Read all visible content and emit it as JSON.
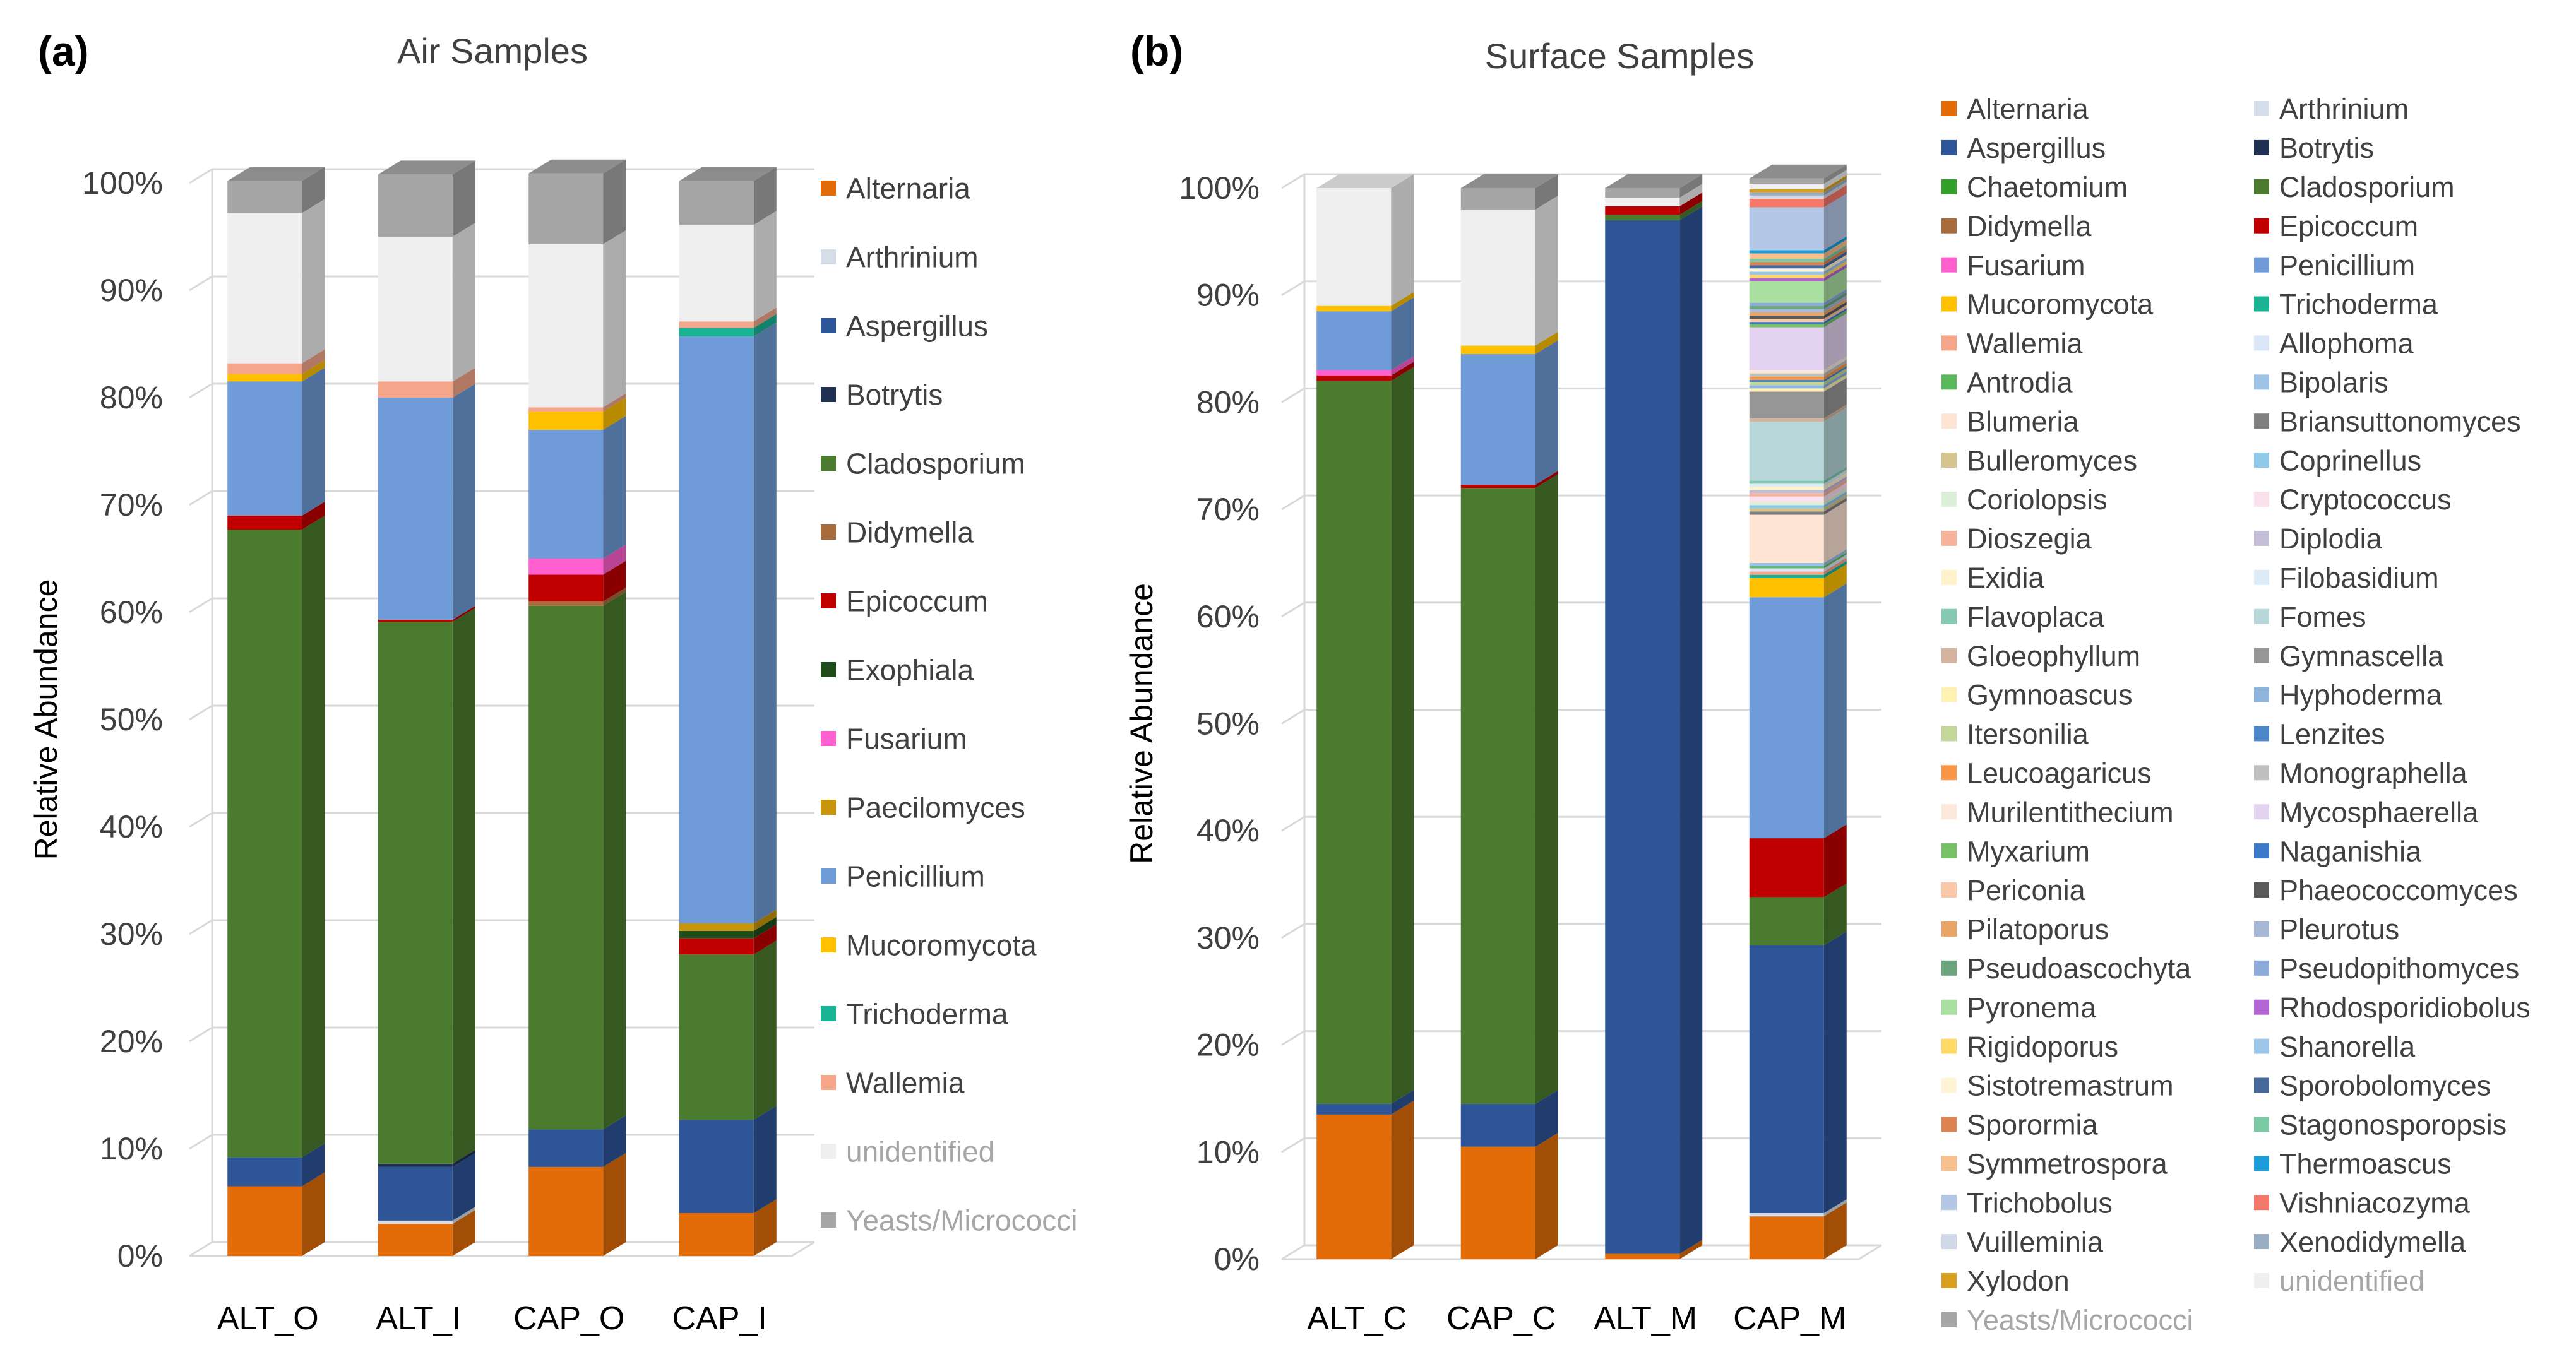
{
  "panels": {
    "a_label": "(a)",
    "b_label": "(b)"
  },
  "chart_data": [
    {
      "type": "bar",
      "stacked": true,
      "percent": true,
      "title": "Air Samples",
      "xlabel": "",
      "ylabel": "Relative Abundance",
      "ylim": [
        0,
        100
      ],
      "yticks": [
        "0%",
        "10%",
        "20%",
        "30%",
        "40%",
        "50%",
        "60%",
        "70%",
        "80%",
        "90%",
        "100%"
      ],
      "categories": [
        "ALT_O",
        "ALT_I",
        "CAP_O",
        "CAP_I"
      ],
      "legend_position": "right",
      "series": [
        {
          "name": "Alternaria",
          "color": "#e36c09",
          "values": [
            6.5,
            3.0,
            8.3,
            4.0
          ]
        },
        {
          "name": "Arthrinium",
          "color": "#d5dde8",
          "values": [
            0,
            0.3,
            0,
            0
          ]
        },
        {
          "name": "Aspergillus",
          "color": "#2e5597",
          "values": [
            2.7,
            5.0,
            3.5,
            8.7
          ]
        },
        {
          "name": "Botrytis",
          "color": "#1f3050",
          "values": [
            0,
            0.3,
            0,
            0
          ]
        },
        {
          "name": "Cladosporium",
          "color": "#4a7b2e",
          "values": [
            58.5,
            50.5,
            48.8,
            15.4
          ]
        },
        {
          "name": "Didymella",
          "color": "#a86b3c",
          "values": [
            0,
            0,
            0.4,
            0
          ]
        },
        {
          "name": "Epicoccum",
          "color": "#c00000",
          "values": [
            1.3,
            0.2,
            2.5,
            1.5
          ]
        },
        {
          "name": "Exophiala",
          "color": "#1e4d1a",
          "values": [
            0,
            0,
            0,
            0.7
          ]
        },
        {
          "name": "Fusarium",
          "color": "#ff5fcf",
          "values": [
            0,
            0,
            1.5,
            0
          ]
        },
        {
          "name": "Paecilomyces",
          "color": "#c8960a",
          "values": [
            0,
            0,
            0,
            0.7
          ]
        },
        {
          "name": "Penicillium",
          "color": "#6f9bd8",
          "values": [
            12.5,
            20.7,
            12.0,
            54.7
          ]
        },
        {
          "name": "Mucoromycota",
          "color": "#ffc000",
          "values": [
            0.7,
            0,
            1.7,
            0
          ]
        },
        {
          "name": "Trichoderma",
          "color": "#1ab394",
          "values": [
            0,
            0,
            0,
            0.8
          ]
        },
        {
          "name": "Wallemia",
          "color": "#f4a58a",
          "values": [
            1.0,
            1.5,
            0.4,
            0.6
          ]
        },
        {
          "name": "unidentified",
          "color": "#efefef",
          "values": [
            14.0,
            13.5,
            15.2,
            9.0
          ]
        },
        {
          "name": "Yeasts/Micrococci",
          "color": "#a6a6a6",
          "values": [
            3.0,
            5.8,
            6.6,
            4.1
          ]
        }
      ]
    },
    {
      "type": "bar",
      "stacked": true,
      "percent": true,
      "title": "Surface Samples",
      "xlabel": "",
      "ylabel": "Relative Abundance",
      "ylim": [
        0,
        100
      ],
      "yticks": [
        "0%",
        "10%",
        "20%",
        "30%",
        "40%",
        "50%",
        "60%",
        "70%",
        "80%",
        "90%",
        "100%"
      ],
      "categories": [
        "ALT_C",
        "CAP_C",
        "ALT_M",
        "CAP_M"
      ],
      "legend_position": "right",
      "series": [
        {
          "name": "Alternaria",
          "color": "#e36c09",
          "values": [
            13.5,
            10.5,
            0.5,
            4.0
          ]
        },
        {
          "name": "Arthrinium",
          "color": "#d5dde8",
          "values": [
            0,
            0,
            0,
            0.3
          ]
        },
        {
          "name": "Aspergillus",
          "color": "#2e5597",
          "values": [
            1.0,
            4.0,
            96.5,
            25.0
          ]
        },
        {
          "name": "Botrytis",
          "color": "#1f3050",
          "values": [
            0,
            0,
            0,
            0
          ]
        },
        {
          "name": "Chaetomium",
          "color": "#33a02c",
          "values": [
            0,
            0,
            0,
            0
          ]
        },
        {
          "name": "Cladosporium",
          "color": "#4a7b2e",
          "values": [
            67.5,
            57.5,
            0.5,
            4.5
          ]
        },
        {
          "name": "Didymella",
          "color": "#a86b3c",
          "values": [
            0,
            0,
            0,
            0
          ]
        },
        {
          "name": "Epicoccum",
          "color": "#c00000",
          "values": [
            0.5,
            0.3,
            0.8,
            5.5
          ]
        },
        {
          "name": "Fusarium",
          "color": "#ff5fcf",
          "values": [
            0.5,
            0,
            0,
            0
          ]
        },
        {
          "name": "Penicillium",
          "color": "#6f9bd8",
          "values": [
            5.5,
            12.2,
            0,
            22.5
          ]
        },
        {
          "name": "Mucoromycota",
          "color": "#ffc000",
          "values": [
            0.5,
            0.8,
            0,
            1.8
          ]
        },
        {
          "name": "Trichoderma",
          "color": "#1ab394",
          "values": [
            0,
            0,
            0,
            0.3
          ]
        },
        {
          "name": "Wallemia",
          "color": "#f4a58a",
          "values": [
            0,
            0,
            0,
            0.3
          ]
        },
        {
          "name": "Allophoma",
          "color": "#dbe7f6",
          "values": [
            0,
            0,
            0,
            0.3
          ]
        },
        {
          "name": "Antrodia",
          "color": "#5cb85c",
          "values": [
            0,
            0,
            0,
            0.2
          ]
        },
        {
          "name": "Bipolaris",
          "color": "#9dc3e6",
          "values": [
            0,
            0,
            0,
            0.3
          ]
        },
        {
          "name": "Blumeria",
          "color": "#fde4d3",
          "values": [
            0,
            0,
            0,
            4.5
          ]
        },
        {
          "name": "Briansuttonomyces",
          "color": "#808080",
          "values": [
            0,
            0,
            0,
            0.3
          ]
        },
        {
          "name": "Bulleromyces",
          "color": "#d6c48f",
          "values": [
            0,
            0,
            0,
            0.3
          ]
        },
        {
          "name": "Coprinellus",
          "color": "#8fcae8",
          "values": [
            0,
            0,
            0,
            0.3
          ]
        },
        {
          "name": "Coriolopsis",
          "color": "#dcefd8",
          "values": [
            0,
            0,
            0,
            0.3
          ]
        },
        {
          "name": "Cryptococcus",
          "color": "#fbe1ec",
          "values": [
            0,
            0,
            0,
            0.5
          ]
        },
        {
          "name": "Dioszegia",
          "color": "#f7b49a",
          "values": [
            0,
            0,
            0,
            0.3
          ]
        },
        {
          "name": "Diplodia",
          "color": "#c3bdd8",
          "values": [
            0,
            0,
            0,
            0.3
          ]
        },
        {
          "name": "Exidia",
          "color": "#fff2cc",
          "values": [
            0,
            0,
            0,
            0.3
          ]
        },
        {
          "name": "Filobasidium",
          "color": "#ddebf7",
          "values": [
            0,
            0,
            0,
            0.3
          ]
        },
        {
          "name": "Flavoplaca",
          "color": "#86c9b2",
          "values": [
            0,
            0,
            0,
            0.3
          ]
        },
        {
          "name": "Fomes",
          "color": "#b7d7da",
          "values": [
            0,
            0,
            0,
            5.5
          ]
        },
        {
          "name": "Gloeophyllum",
          "color": "#d4b49e",
          "values": [
            0,
            0,
            0,
            0.3
          ]
        },
        {
          "name": "Gymnascella",
          "color": "#969696",
          "values": [
            0,
            0,
            0,
            2.5
          ]
        },
        {
          "name": "Gymnoascus",
          "color": "#fff0b3",
          "values": [
            0,
            0,
            0,
            0.3
          ]
        },
        {
          "name": "Hyphoderma",
          "color": "#8fb4dc",
          "values": [
            0,
            0,
            0,
            0.3
          ]
        },
        {
          "name": "Itersonilia",
          "color": "#c4d79b",
          "values": [
            0,
            0,
            0,
            0.3
          ]
        },
        {
          "name": "Lenzites",
          "color": "#4a86c8",
          "values": [
            0,
            0,
            0,
            0.2
          ]
        },
        {
          "name": "Leucoagaricus",
          "color": "#f79646",
          "values": [
            0,
            0,
            0,
            0.3
          ]
        },
        {
          "name": "Monographella",
          "color": "#bfbfbf",
          "values": [
            0,
            0,
            0,
            0.3
          ]
        },
        {
          "name": "Murilentithecium",
          "color": "#fde9dc",
          "values": [
            0,
            0,
            0,
            0.3
          ]
        },
        {
          "name": "Mycosphaerella",
          "color": "#e4d3f0",
          "values": [
            0,
            0,
            0,
            4.0
          ]
        },
        {
          "name": "Myxarium",
          "color": "#76c068",
          "values": [
            0,
            0,
            0,
            0.3
          ]
        },
        {
          "name": "Naganishia",
          "color": "#3c78c8",
          "values": [
            0,
            0,
            0,
            0.2
          ]
        },
        {
          "name": "Periconia",
          "color": "#fac8a8",
          "values": [
            0,
            0,
            0,
            0.3
          ]
        },
        {
          "name": "Phaeococcomyces",
          "color": "#5a5a5a",
          "values": [
            0,
            0,
            0,
            0.3
          ]
        },
        {
          "name": "Pilatoporus",
          "color": "#e8a565",
          "values": [
            0,
            0,
            0,
            0.3
          ]
        },
        {
          "name": "Pleurotus",
          "color": "#a6b8d6",
          "values": [
            0,
            0,
            0,
            0.3
          ]
        },
        {
          "name": "Pseudoascochyta",
          "color": "#6aa57e",
          "values": [
            0,
            0,
            0,
            0.3
          ]
        },
        {
          "name": "Pseudopithomyces",
          "color": "#8eaadb",
          "values": [
            0,
            0,
            0,
            0.3
          ]
        },
        {
          "name": "Pyronema",
          "color": "#a9dfa0",
          "values": [
            0,
            0,
            0,
            2.0
          ]
        },
        {
          "name": "Rhodosporidiobolus",
          "color": "#b366d1",
          "values": [
            0,
            0,
            0,
            0.3
          ]
        },
        {
          "name": "Rigidoporus",
          "color": "#ffd966",
          "values": [
            0,
            0,
            0,
            0.3
          ]
        },
        {
          "name": "Shanorella",
          "color": "#9ec6e8",
          "values": [
            0,
            0,
            0,
            0.3
          ]
        },
        {
          "name": "Sistotremastrum",
          "color": "#fff5d6",
          "values": [
            0,
            0,
            0,
            0.3
          ]
        },
        {
          "name": "Sporobolomyces",
          "color": "#46689a",
          "values": [
            0,
            0,
            0,
            0.3
          ]
        },
        {
          "name": "Sporormia",
          "color": "#dd8452",
          "values": [
            0,
            0,
            0,
            0.3
          ]
        },
        {
          "name": "Stagonosporopsis",
          "color": "#7bc8a4",
          "values": [
            0,
            0,
            0,
            0.3
          ]
        },
        {
          "name": "Symmetrospora",
          "color": "#f8bf8f",
          "values": [
            0,
            0,
            0,
            0.5
          ]
        },
        {
          "name": "Thermoascus",
          "color": "#1c9dd9",
          "values": [
            0,
            0,
            0,
            0.3
          ]
        },
        {
          "name": "Trichobolus",
          "color": "#b4c7e7",
          "values": [
            0,
            0,
            0,
            4.0
          ]
        },
        {
          "name": "Vishniacozyma",
          "color": "#f4786a",
          "values": [
            0,
            0,
            0,
            0.8
          ]
        },
        {
          "name": "Vuilleminia",
          "color": "#d0d8e8",
          "values": [
            0,
            0,
            0,
            0.3
          ]
        },
        {
          "name": "Xenodidymella",
          "color": "#9aaec4",
          "values": [
            0,
            0,
            0,
            0.3
          ]
        },
        {
          "name": "Xylodon",
          "color": "#d8a020",
          "values": [
            0,
            0,
            0,
            0.3
          ]
        },
        {
          "name": "unidentified",
          "color": "#efefef",
          "values": [
            11.0,
            12.7,
            0.8,
            0.5
          ]
        },
        {
          "name": "Yeasts/Micrococci",
          "color": "#a6a6a6",
          "values": [
            0,
            2.0,
            0.9,
            0.5
          ]
        }
      ]
    }
  ]
}
